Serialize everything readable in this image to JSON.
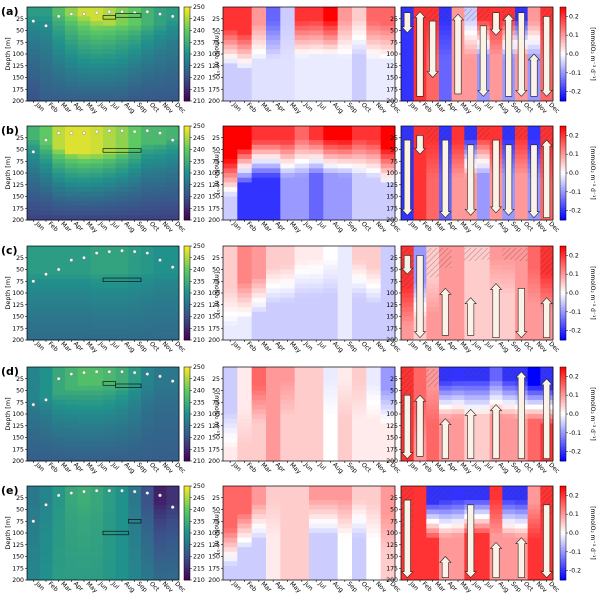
{
  "chart_data": {
    "type": "heatmap",
    "months": [
      "Jan",
      "Feb",
      "Mar",
      "Apr",
      "May",
      "Jun",
      "Jul",
      "Aug",
      "Sep",
      "Oct",
      "Nov",
      "Dec"
    ],
    "y_ticks": [
      25,
      50,
      75,
      100,
      125,
      150,
      175,
      200
    ],
    "y_label": "Depth [m]",
    "depth_range": [
      0,
      200
    ],
    "oxygen_colorbar": {
      "label": "[mmolO₂ m⁻³]",
      "ticks": [
        210,
        215,
        220,
        225,
        230,
        235,
        240,
        245,
        250
      ],
      "range": [
        210,
        250
      ],
      "colormap": [
        "#440154",
        "#3b528b",
        "#21918c",
        "#5ec962",
        "#fde725"
      ]
    },
    "rate_colorbar": {
      "label": "[mmolO₂ m⁻³ d⁻¹]",
      "ticks": [
        "-0.2",
        "-0.1",
        "0.0",
        "0.1",
        "0.2"
      ],
      "tick_values": [
        -0.2,
        -0.1,
        0.0,
        0.1,
        0.2
      ],
      "range": [
        -0.25,
        0.25
      ],
      "colormap": [
        "#0000ff",
        "#ffffff",
        "#ff0000"
      ]
    },
    "panels": [
      {
        "letter": "(a)",
        "mld": [
          30,
          40,
          20,
          15,
          15,
          12,
          10,
          10,
          12,
          10,
          15,
          20
        ],
        "boxes": [
          [
            6,
            7,
            22
          ],
          [
            7,
            9,
            18
          ]
        ],
        "oxygen_profile": {
          "surface": [
            232,
            232,
            238,
            243,
            247,
            247,
            245,
            242,
            240,
            236,
            233,
            232
          ],
          "deep": [
            220,
            222,
            222,
            222,
            222,
            222,
            222,
            222,
            221,
            221,
            221,
            221
          ],
          "max_depth": [
            20,
            20,
            20,
            20,
            20,
            30,
            35,
            40,
            40,
            40,
            40,
            30
          ]
        },
        "rate_obs": {
          "surface": [
            0.2,
            0.2,
            0.1,
            -0.15,
            -0.05,
            0.2,
            0.2,
            0.25,
            0.1,
            0.05,
            0.15,
            0.15
          ],
          "deep": [
            -0.05,
            -0.05,
            -0.03,
            -0.03,
            -0.03,
            -0.02,
            -0.02,
            -0.02,
            -0.02,
            -0.05,
            -0.02,
            -0.02
          ]
        },
        "rate_sum": {
          "surface": [
            -0.2,
            0.2,
            0.2,
            -0.2,
            0.1,
            -0.05,
            0.2,
            0.2,
            0.2,
            -0.2,
            0.1,
            0.2
          ],
          "deep": [
            -0.2,
            0.2,
            0.15,
            -0.15,
            0.1,
            0.1,
            -0.1,
            0.1,
            -0.1,
            0.1,
            -0.1,
            0.15
          ]
        },
        "arrows": [
          [
            0,
            "down",
            12,
            55
          ],
          [
            1,
            "up",
            10,
            190
          ],
          [
            2,
            "down",
            30,
            150
          ],
          [
            4,
            "up",
            15,
            185
          ],
          [
            6,
            "down",
            40,
            190
          ],
          [
            7,
            "down",
            12,
            60
          ],
          [
            8,
            "up",
            15,
            190
          ],
          [
            9,
            "down",
            12,
            190
          ],
          [
            10,
            "up",
            100,
            190
          ],
          [
            11,
            "down",
            20,
            190
          ]
        ]
      },
      {
        "letter": "(b)",
        "mld": [
          55,
          30,
          15,
          15,
          15,
          12,
          10,
          10,
          12,
          10,
          15,
          30
        ],
        "boxes": [
          [
            6,
            9,
            52
          ]
        ],
        "oxygen_profile": {
          "surface": [
            236,
            240,
            246,
            248,
            248,
            247,
            245,
            243,
            240,
            237,
            237,
            236
          ],
          "deep": [
            218,
            218,
            218,
            218,
            218,
            218,
            218,
            218,
            218,
            218,
            218,
            218
          ],
          "max_depth": [
            30,
            40,
            50,
            55,
            60,
            60,
            60,
            55,
            50,
            40,
            35,
            30
          ]
        },
        "rate_obs": {
          "surface": [
            0.25,
            0.25,
            0.2,
            0.2,
            0.2,
            0.15,
            0.2,
            0.25,
            0.25,
            0.2,
            0.2,
            0.25
          ],
          "deep": [
            -0.05,
            -0.2,
            -0.2,
            -0.2,
            -0.1,
            -0.1,
            -0.15,
            -0.1,
            -0.1,
            -0.05,
            -0.05,
            -0.05
          ]
        },
        "rate_sum": {
          "surface": [
            -0.2,
            0.2,
            0.2,
            -0.2,
            0.2,
            -0.2,
            0.2,
            0.2,
            -0.2,
            0.2,
            -0.2,
            0.2
          ],
          "deep": [
            -0.2,
            0.2,
            0.15,
            -0.15,
            0.1,
            0.1,
            -0.1,
            0.1,
            -0.1,
            0.1,
            -0.1,
            0.15
          ]
        },
        "arrows": [
          [
            0,
            "down",
            30,
            190
          ],
          [
            1,
            "down",
            20,
            60
          ],
          [
            3,
            "down",
            30,
            195
          ],
          [
            5,
            "down",
            40,
            190
          ],
          [
            7,
            "down",
            30,
            185
          ],
          [
            8,
            "down",
            40,
            190
          ],
          [
            10,
            "down",
            40,
            195
          ],
          [
            11,
            "up",
            30,
            195
          ]
        ]
      },
      {
        "letter": "(c)",
        "mld": [
          75,
          60,
          50,
          30,
          25,
          15,
          12,
          10,
          12,
          15,
          30,
          45
        ],
        "boxes": [
          [
            6,
            9,
            72
          ]
        ],
        "oxygen_profile": {
          "surface": [
            232,
            232,
            232,
            232,
            232,
            233,
            233,
            233,
            232,
            231,
            230,
            230
          ],
          "deep": [
            224,
            224,
            224,
            224,
            224,
            224,
            224,
            224,
            224,
            224,
            224,
            224
          ],
          "max_depth": [
            60,
            60,
            60,
            60,
            60,
            60,
            60,
            60,
            60,
            60,
            60,
            60
          ]
        },
        "rate_obs": {
          "surface": [
            0.05,
            0.12,
            0.1,
            0.05,
            0.05,
            0.02,
            0.02,
            0.0,
            -0.02,
            0.05,
            0.05,
            -0.05
          ],
          "deep": [
            -0.02,
            -0.02,
            -0.05,
            -0.05,
            -0.05,
            -0.05,
            -0.05,
            -0.05,
            -0.02,
            -0.05,
            -0.05,
            -0.05
          ]
        },
        "rate_sum": {
          "surface": [
            0.2,
            -0.1,
            0.05,
            0.1,
            0.1,
            0.05,
            0.05,
            0.1,
            0.1,
            0.1,
            0.15,
            0.2
          ],
          "deep": [
            0.1,
            0.05,
            0.1,
            0.1,
            0.1,
            0.05,
            0.05,
            0.05,
            0.05,
            0.1,
            0.1,
            0.1
          ]
        },
        "arrows": [
          [
            0,
            "down",
            20,
            60
          ],
          [
            1,
            "down",
            20,
            195
          ],
          [
            3,
            "up",
            90,
            190
          ],
          [
            5,
            "up",
            110,
            190
          ],
          [
            7,
            "up",
            80,
            195
          ],
          [
            9,
            "down",
            90,
            195
          ],
          [
            11,
            "up",
            110,
            195
          ]
        ]
      },
      {
        "letter": "(d)",
        "mld": [
          80,
          70,
          25,
          15,
          12,
          10,
          10,
          10,
          12,
          15,
          20,
          30
        ],
        "boxes": [
          [
            6,
            7,
            35
          ],
          [
            7,
            9,
            40
          ]
        ],
        "oxygen_profile": {
          "surface": [
            228,
            230,
            234,
            236,
            238,
            238,
            237,
            235,
            232,
            228,
            226,
            226
          ],
          "deep": [
            222,
            222,
            222,
            222,
            222,
            222,
            222,
            222,
            222,
            222,
            222,
            222
          ],
          "max_depth": [
            70,
            70,
            60,
            50,
            40,
            40,
            40,
            40,
            40,
            40,
            40,
            40
          ]
        },
        "rate_obs": {
          "surface": [
            -0.05,
            0.02,
            0.15,
            0.1,
            0.1,
            0.05,
            0.05,
            -0.02,
            0.02,
            0.05,
            -0.02,
            -0.1
          ],
          "deep": [
            0.02,
            0.05,
            0.05,
            0.1,
            0.05,
            0.05,
            0.05,
            0.0,
            0.05,
            0.02,
            0.02,
            0.02
          ]
        },
        "rate_sum": {
          "surface": [
            0.2,
            0.15,
            0.1,
            -0.2,
            -0.2,
            -0.2,
            -0.2,
            -0.15,
            -0.2,
            -0.2,
            -0.25,
            -0.2
          ],
          "deep": [
            0.2,
            0.1,
            0.15,
            0.1,
            0.1,
            0.05,
            0.05,
            0.1,
            0.1,
            0.1,
            0.15,
            0.2
          ]
        },
        "arrows": [
          [
            0,
            "down",
            60,
            195
          ],
          [
            1,
            "up",
            60,
            190
          ],
          [
            3,
            "up",
            110,
            195
          ],
          [
            5,
            "up",
            90,
            195
          ],
          [
            7,
            "up",
            80,
            195
          ],
          [
            9,
            "up",
            10,
            195
          ],
          [
            11,
            "up",
            25,
            195
          ]
        ]
      },
      {
        "letter": "(e)",
        "mld": [
          75,
          40,
          20,
          15,
          12,
          10,
          10,
          10,
          12,
          15,
          20,
          45
        ],
        "boxes": [
          [
            6,
            8,
            100
          ],
          [
            8,
            9,
            75
          ]
        ],
        "oxygen_profile": {
          "surface": [
            226,
            228,
            231,
            234,
            235,
            234,
            232,
            230,
            226,
            220,
            214,
            216
          ],
          "deep": [
            228,
            230,
            232,
            232,
            232,
            232,
            231,
            230,
            228,
            226,
            224,
            224
          ],
          "max_depth": [
            40,
            40,
            40,
            40,
            40,
            40,
            40,
            40,
            40,
            40,
            40,
            40
          ]
        },
        "rate_obs": {
          "surface": [
            0.15,
            0.15,
            0.1,
            0.05,
            0.05,
            0.05,
            0.1,
            0.1,
            0.1,
            0.05,
            0.05,
            0.1
          ],
          "deep": [
            -0.05,
            -0.05,
            -0.05,
            0.02,
            0.05,
            0.05,
            -0.05,
            -0.05,
            0.0,
            -0.05,
            0.0,
            0.05
          ]
        },
        "rate_sum": {
          "surface": [
            0.2,
            0.2,
            -0.2,
            -0.2,
            -0.2,
            -0.2,
            -0.2,
            0.2,
            -0.2,
            -0.2,
            0.1,
            0.2
          ],
          "deep": [
            0.2,
            0.2,
            0.2,
            0.1,
            0.1,
            0.2,
            0.2,
            0.1,
            0.1,
            0.1,
            0.2,
            0.2
          ]
        },
        "arrows": [
          [
            0,
            "down",
            30,
            195
          ],
          [
            3,
            "up",
            150,
            195
          ],
          [
            5,
            "down",
            40,
            195
          ],
          [
            7,
            "up",
            120,
            195
          ],
          [
            9,
            "up",
            110,
            195
          ],
          [
            11,
            "down",
            40,
            195
          ]
        ]
      }
    ]
  }
}
